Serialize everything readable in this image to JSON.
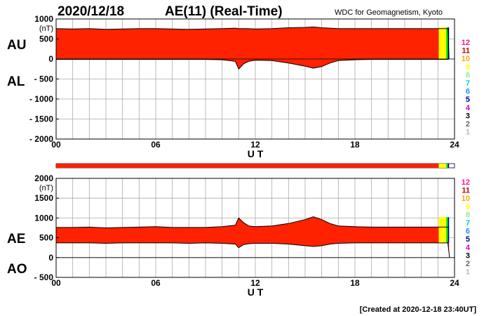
{
  "header": {
    "date": "2020/12/18",
    "index": "AE(11) (Real-Time)",
    "source": "WDC for Geomagnetism, Kyoto"
  },
  "footer": {
    "created": "[Created at 2020-12-18 23:40UT]"
  },
  "legend_kp": {
    "levels": [
      "12",
      "11",
      "10",
      "9",
      "8",
      "7",
      "6",
      "5",
      "4",
      "3",
      "2",
      "1"
    ],
    "colors": [
      "#ff1493",
      "#cc0000",
      "#ffa500",
      "#ffff00",
      "#90ee90",
      "#00cccc",
      "#1e90ff",
      "#00008b",
      "#cc00cc",
      "#000000",
      "#666666",
      "#bbbbbb"
    ]
  },
  "chart_data": [
    {
      "type": "area",
      "panel": "AU/AL",
      "label_upper": "AU",
      "label_lower": "AL",
      "ylabel": "(nT)",
      "xlabel": "U T",
      "ylim": [
        -2000,
        1000
      ],
      "yticks": [
        1000,
        500,
        0,
        -500,
        -1000,
        -1500,
        -2000
      ],
      "ytick_labels": [
        "1000",
        "500",
        "0",
        "- 500",
        "- 1000",
        "- 1500",
        "- 2000"
      ],
      "xlim": [
        0,
        24
      ],
      "xticks": [
        0,
        6,
        12,
        18,
        24
      ],
      "xtick_labels": [
        "00",
        "06",
        "12",
        "18",
        "24"
      ],
      "grid": true,
      "colors": {
        "fill": "#ff2200",
        "outline": "#000000",
        "status_yellow": "#ffff00",
        "status_green": "#00ff00",
        "status_blue": "#0000aa"
      },
      "status_hours": {
        "yellow_start": 23.05,
        "green_start": 23.5,
        "blue_start": 23.6,
        "end": 23.67
      },
      "series": [
        {
          "name": "AU",
          "x": [
            0,
            1,
            2,
            3,
            4,
            5,
            6,
            7,
            8,
            9,
            10,
            10.8,
            11,
            11.5,
            12,
            13,
            14,
            15,
            15.5,
            16,
            17,
            18,
            19,
            20,
            21,
            22,
            23,
            23.6,
            23.67
          ],
          "y": [
            760,
            750,
            760,
            740,
            750,
            760,
            760,
            750,
            740,
            750,
            760,
            770,
            760,
            760,
            750,
            760,
            780,
            790,
            800,
            780,
            760,
            760,
            760,
            760,
            760,
            760,
            760,
            760,
            0
          ]
        },
        {
          "name": "AL",
          "x": [
            0,
            1,
            2,
            3,
            4,
            5,
            6,
            7,
            8,
            9,
            10,
            10.8,
            11,
            11.3,
            11.6,
            12,
            13,
            14,
            15,
            15.5,
            16,
            16.5,
            17,
            18,
            19,
            20,
            21,
            22,
            23,
            23.6,
            23.67
          ],
          "y": [
            -10,
            -10,
            -10,
            -10,
            -10,
            -10,
            -10,
            -10,
            -10,
            -10,
            -20,
            -60,
            -250,
            -120,
            -60,
            -30,
            -40,
            -100,
            -180,
            -230,
            -190,
            -100,
            -40,
            -20,
            -10,
            -10,
            -10,
            -10,
            -10,
            -10,
            0
          ]
        }
      ]
    },
    {
      "type": "area",
      "panel": "AE/AO",
      "label_upper": "AE",
      "label_lower": "AO",
      "ylabel": "(nT)",
      "xlabel": "U T",
      "ylim": [
        -500,
        2000
      ],
      "yticks": [
        2000,
        1500,
        1000,
        500,
        0,
        -500
      ],
      "ytick_labels": [
        "2000",
        "1500",
        "1000",
        "500",
        "0",
        "- 500"
      ],
      "xlim": [
        0,
        24
      ],
      "xticks": [
        0,
        6,
        12,
        18,
        24
      ],
      "xtick_labels": [
        "00",
        "06",
        "12",
        "18",
        "24"
      ],
      "grid": true,
      "colors": {
        "fill": "#ff2200",
        "outline": "#000000",
        "status_yellow": "#ffff00",
        "status_green": "#00ff00",
        "status_blue": "#0000aa"
      },
      "status_hours": {
        "yellow_start": 23.05,
        "green_start": 23.5,
        "blue_start": 23.6,
        "end": 23.67
      },
      "series": [
        {
          "name": "AE",
          "x": [
            0,
            1,
            2,
            3,
            4,
            5,
            6,
            7,
            8,
            9,
            10,
            10.8,
            11,
            11.3,
            11.6,
            12,
            13,
            14,
            15,
            15.5,
            16,
            16.5,
            17,
            18,
            19,
            20,
            21,
            22,
            23,
            23.6,
            23.67
          ],
          "y": [
            760,
            760,
            770,
            750,
            760,
            770,
            780,
            760,
            760,
            760,
            780,
            820,
            1000,
            880,
            800,
            780,
            800,
            860,
            960,
            1030,
            960,
            860,
            800,
            780,
            770,
            770,
            770,
            770,
            770,
            770,
            770
          ]
        },
        {
          "name": "AO",
          "x": [
            0,
            1,
            2,
            3,
            4,
            5,
            6,
            7,
            8,
            9,
            10,
            10.8,
            11,
            11.3,
            11.6,
            12,
            13,
            14,
            15,
            15.5,
            16,
            16.5,
            17,
            18,
            19,
            20,
            21,
            22,
            23,
            23.6,
            23.7
          ],
          "y": [
            370,
            370,
            370,
            360,
            370,
            370,
            370,
            370,
            360,
            370,
            360,
            340,
            250,
            330,
            350,
            360,
            360,
            340,
            300,
            280,
            300,
            340,
            360,
            370,
            370,
            370,
            370,
            370,
            370,
            370,
            0
          ]
        }
      ]
    }
  ]
}
